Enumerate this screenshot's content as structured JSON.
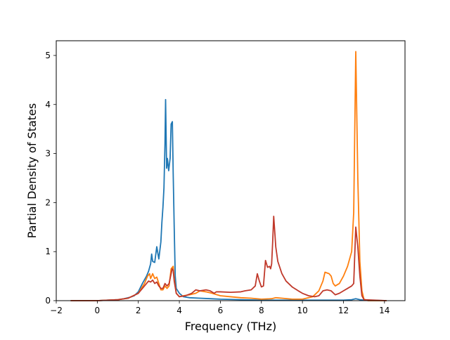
{
  "chart_data": {
    "type": "line",
    "title": "",
    "xlabel": "Frequency (THz)",
    "ylabel": "Partial Density of States",
    "xlim": [
      -2.0,
      15.0
    ],
    "ylim": [
      0,
      5.3
    ],
    "xticks": [
      -2,
      0,
      2,
      4,
      6,
      8,
      10,
      12,
      14
    ],
    "yticks": [
      0,
      1,
      2,
      3,
      4,
      5
    ],
    "grid": false,
    "legend": "none",
    "series": [
      {
        "color": "#1f77b4",
        "points": [
          [
            -1.3,
            0
          ],
          [
            0.0,
            0.0
          ],
          [
            0.5,
            0.01
          ],
          [
            1.0,
            0.02
          ],
          [
            1.3,
            0.04
          ],
          [
            1.6,
            0.07
          ],
          [
            1.8,
            0.1
          ],
          [
            2.0,
            0.18
          ],
          [
            2.2,
            0.35
          ],
          [
            2.4,
            0.5
          ],
          [
            2.5,
            0.6
          ],
          [
            2.6,
            0.75
          ],
          [
            2.65,
            0.95
          ],
          [
            2.7,
            0.8
          ],
          [
            2.8,
            0.78
          ],
          [
            2.9,
            1.1
          ],
          [
            3.0,
            0.85
          ],
          [
            3.1,
            1.2
          ],
          [
            3.15,
            1.6
          ],
          [
            3.2,
            1.9
          ],
          [
            3.25,
            2.3
          ],
          [
            3.3,
            3.2
          ],
          [
            3.33,
            4.1
          ],
          [
            3.38,
            2.7
          ],
          [
            3.42,
            2.9
          ],
          [
            3.48,
            2.65
          ],
          [
            3.55,
            2.9
          ],
          [
            3.6,
            3.6
          ],
          [
            3.66,
            3.65
          ],
          [
            3.7,
            2.6
          ],
          [
            3.75,
            1.5
          ],
          [
            3.8,
            0.5
          ],
          [
            3.85,
            0.25
          ],
          [
            4.0,
            0.15
          ],
          [
            4.2,
            0.08
          ],
          [
            4.5,
            0.06
          ],
          [
            5.0,
            0.05
          ],
          [
            5.5,
            0.04
          ],
          [
            6.0,
            0.03
          ],
          [
            7.0,
            0.02
          ],
          [
            8.0,
            0.01
          ],
          [
            9.0,
            0.01
          ],
          [
            10.0,
            0.01
          ],
          [
            11.0,
            0.01
          ],
          [
            12.0,
            0.01
          ],
          [
            12.4,
            0.02
          ],
          [
            12.6,
            0.04
          ],
          [
            12.8,
            0.02
          ],
          [
            13.0,
            0.01
          ],
          [
            14.1,
            0
          ]
        ]
      },
      {
        "color": "#ff7f0e",
        "points": [
          [
            -1.3,
            0
          ],
          [
            0.0,
            0.0
          ],
          [
            1.0,
            0.02
          ],
          [
            1.5,
            0.05
          ],
          [
            2.0,
            0.15
          ],
          [
            2.3,
            0.35
          ],
          [
            2.45,
            0.5
          ],
          [
            2.55,
            0.55
          ],
          [
            2.6,
            0.45
          ],
          [
            2.7,
            0.55
          ],
          [
            2.8,
            0.45
          ],
          [
            2.9,
            0.48
          ],
          [
            3.0,
            0.35
          ],
          [
            3.1,
            0.22
          ],
          [
            3.2,
            0.22
          ],
          [
            3.3,
            0.3
          ],
          [
            3.4,
            0.25
          ],
          [
            3.5,
            0.3
          ],
          [
            3.6,
            0.65
          ],
          [
            3.7,
            0.7
          ],
          [
            3.75,
            0.45
          ],
          [
            3.85,
            0.15
          ],
          [
            4.0,
            0.08
          ],
          [
            4.2,
            0.1
          ],
          [
            4.5,
            0.12
          ],
          [
            4.8,
            0.15
          ],
          [
            5.0,
            0.2
          ],
          [
            5.3,
            0.18
          ],
          [
            5.6,
            0.15
          ],
          [
            6.0,
            0.1
          ],
          [
            6.5,
            0.08
          ],
          [
            7.0,
            0.06
          ],
          [
            7.5,
            0.05
          ],
          [
            8.0,
            0.03
          ],
          [
            8.5,
            0.04
          ],
          [
            8.7,
            0.06
          ],
          [
            9.0,
            0.05
          ],
          [
            9.5,
            0.03
          ],
          [
            10.0,
            0.03
          ],
          [
            10.5,
            0.08
          ],
          [
            10.8,
            0.2
          ],
          [
            11.0,
            0.4
          ],
          [
            11.1,
            0.58
          ],
          [
            11.3,
            0.55
          ],
          [
            11.4,
            0.5
          ],
          [
            11.5,
            0.35
          ],
          [
            11.6,
            0.3
          ],
          [
            11.8,
            0.35
          ],
          [
            12.0,
            0.5
          ],
          [
            12.2,
            0.7
          ],
          [
            12.4,
            1.0
          ],
          [
            12.5,
            1.8
          ],
          [
            12.6,
            5.08
          ],
          [
            12.7,
            2.5
          ],
          [
            12.8,
            0.8
          ],
          [
            12.9,
            0.2
          ],
          [
            13.0,
            0.03
          ],
          [
            13.2,
            0.0
          ],
          [
            14.1,
            0
          ]
        ]
      },
      {
        "color": "#c0392b",
        "points": [
          [
            -1.3,
            0
          ],
          [
            0.0,
            0.0
          ],
          [
            1.0,
            0.02
          ],
          [
            1.5,
            0.05
          ],
          [
            2.0,
            0.15
          ],
          [
            2.3,
            0.3
          ],
          [
            2.5,
            0.4
          ],
          [
            2.6,
            0.38
          ],
          [
            2.7,
            0.42
          ],
          [
            2.8,
            0.35
          ],
          [
            2.9,
            0.38
          ],
          [
            3.0,
            0.3
          ],
          [
            3.1,
            0.25
          ],
          [
            3.2,
            0.25
          ],
          [
            3.3,
            0.35
          ],
          [
            3.4,
            0.3
          ],
          [
            3.5,
            0.35
          ],
          [
            3.6,
            0.55
          ],
          [
            3.65,
            0.65
          ],
          [
            3.7,
            0.62
          ],
          [
            3.75,
            0.4
          ],
          [
            3.85,
            0.15
          ],
          [
            4.0,
            0.08
          ],
          [
            4.3,
            0.1
          ],
          [
            4.6,
            0.15
          ],
          [
            4.8,
            0.22
          ],
          [
            5.0,
            0.2
          ],
          [
            5.3,
            0.22
          ],
          [
            5.5,
            0.2
          ],
          [
            5.7,
            0.15
          ],
          [
            5.8,
            0.18
          ],
          [
            6.0,
            0.18
          ],
          [
            6.5,
            0.17
          ],
          [
            7.0,
            0.18
          ],
          [
            7.2,
            0.2
          ],
          [
            7.5,
            0.22
          ],
          [
            7.7,
            0.3
          ],
          [
            7.8,
            0.55
          ],
          [
            7.9,
            0.4
          ],
          [
            8.0,
            0.28
          ],
          [
            8.1,
            0.3
          ],
          [
            8.2,
            0.82
          ],
          [
            8.3,
            0.68
          ],
          [
            8.4,
            0.7
          ],
          [
            8.45,
            0.65
          ],
          [
            8.5,
            0.75
          ],
          [
            8.55,
            1.2
          ],
          [
            8.6,
            1.72
          ],
          [
            8.7,
            1.1
          ],
          [
            8.8,
            0.8
          ],
          [
            9.0,
            0.55
          ],
          [
            9.2,
            0.4
          ],
          [
            9.5,
            0.28
          ],
          [
            9.8,
            0.2
          ],
          [
            10.0,
            0.15
          ],
          [
            10.3,
            0.1
          ],
          [
            10.6,
            0.08
          ],
          [
            10.8,
            0.1
          ],
          [
            11.0,
            0.2
          ],
          [
            11.2,
            0.22
          ],
          [
            11.4,
            0.2
          ],
          [
            11.6,
            0.12
          ],
          [
            11.8,
            0.15
          ],
          [
            12.0,
            0.2
          ],
          [
            12.2,
            0.25
          ],
          [
            12.4,
            0.3
          ],
          [
            12.5,
            0.35
          ],
          [
            12.6,
            1.5
          ],
          [
            12.7,
            1.1
          ],
          [
            12.8,
            0.5
          ],
          [
            12.9,
            0.1
          ],
          [
            13.0,
            0.02
          ],
          [
            14.1,
            0
          ]
        ]
      }
    ]
  }
}
